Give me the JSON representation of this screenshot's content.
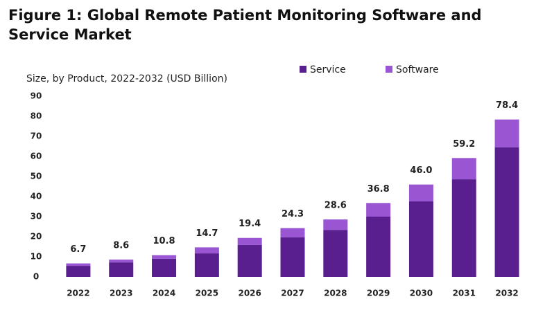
{
  "chart_data": {
    "type": "stacked-bar",
    "title": "Figure 1: Global Remote Patient Monitoring Software and Service Market",
    "subtitle": "Size, by Product, 2022-2032 (USD Billion)",
    "categories": [
      "2022",
      "2023",
      "2024",
      "2025",
      "2026",
      "2027",
      "2028",
      "2029",
      "2030",
      "2031",
      "2032"
    ],
    "series": [
      {
        "name": "Service",
        "color": "#5a1f8e",
        "values": [
          5.5,
          7.2,
          9.0,
          11.7,
          15.9,
          19.7,
          23.4,
          30.0,
          37.6,
          48.6,
          64.5
        ]
      },
      {
        "name": "Software",
        "color": "#9a56d2",
        "values": [
          1.2,
          1.4,
          1.8,
          3.0,
          3.5,
          4.6,
          5.2,
          6.8,
          8.4,
          10.6,
          13.9
        ]
      }
    ],
    "total_labels": [
      "6.7",
      "8.6",
      "10.8",
      "14.7",
      "19.4",
      "24.3",
      "28.6",
      "36.8",
      "46.0",
      "59.2",
      "78.4"
    ],
    "ylim": [
      0,
      90
    ],
    "yticks": [
      0,
      10,
      20,
      30,
      40,
      50,
      60,
      70,
      80,
      90
    ],
    "grid": false
  }
}
